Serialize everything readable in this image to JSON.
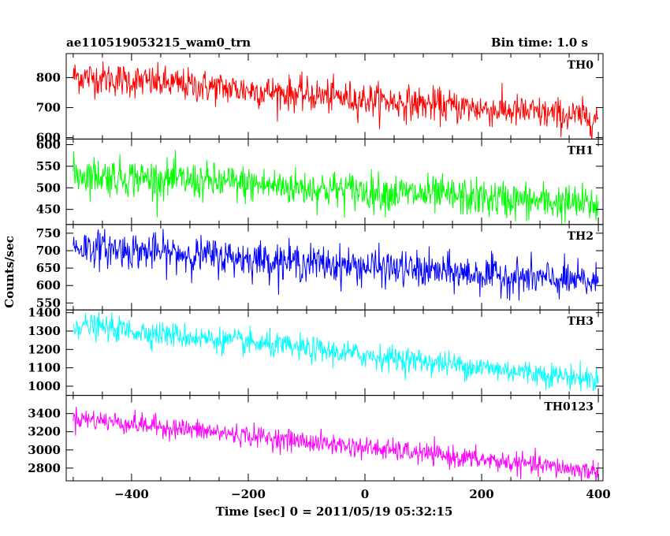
{
  "header": {
    "left_title": "ae110519053215_wam0_trn",
    "right_title": "Bin time: 1.0 s"
  },
  "chart_data": {
    "type": "line",
    "shared_x": {
      "label": "Time [sec] 0 = 2011/05/19 05:32:15",
      "range": [
        -512,
        408
      ],
      "ticks": [
        -400,
        -200,
        0,
        200,
        400
      ],
      "tick_labels": [
        "−400",
        "−200",
        "0",
        "200",
        "400"
      ],
      "data_start": -500,
      "data_end": 400,
      "bin_time": 1.0
    },
    "ylabel": "Counts/sec",
    "panels": [
      {
        "label": "TH0",
        "color": "#ff0000",
        "ylim": [
          595,
          880
        ],
        "yticks": [
          600,
          700,
          800
        ],
        "trend_start": 805,
        "trend_end": 665,
        "noise_sigma": 28
      },
      {
        "label": "TH1",
        "color": "#00ff00",
        "ylim": [
          415,
          613
        ],
        "yticks": [
          450,
          500,
          550,
          600
        ],
        "trend_start": 532,
        "trend_end": 460,
        "noise_sigma": 22
      },
      {
        "label": "TH2",
        "color": "#0000ff",
        "ylim": [
          530,
          775
        ],
        "yticks": [
          550,
          600,
          650,
          700,
          750
        ],
        "trend_start": 712,
        "trend_end": 608,
        "noise_sigma": 26
      },
      {
        "label": "TH3",
        "color": "#00ffff",
        "ylim": [
          950,
          1415
        ],
        "yticks": [
          1000,
          1100,
          1200,
          1300,
          1400
        ],
        "trend_start": 1335,
        "trend_end": 1035,
        "noise_sigma": 34
      },
      {
        "label": "TH0123",
        "color": "#ff00ff",
        "ylim": [
          2660,
          3600
        ],
        "yticks": [
          2800,
          3000,
          3200,
          3400
        ],
        "trend_start": 3355,
        "trend_end": 2760,
        "noise_sigma": 58
      }
    ]
  }
}
